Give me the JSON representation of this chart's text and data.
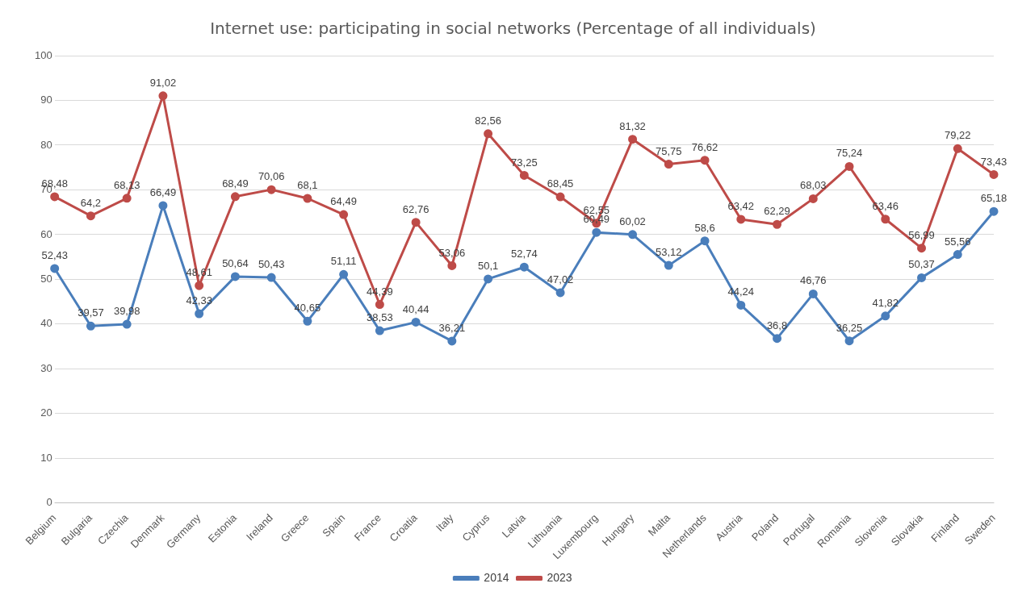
{
  "chart_data": {
    "type": "line",
    "title": "Internet use: participating in social networks (Percentage of all individuals)",
    "categories": [
      "Belgium",
      "Bulgaria",
      "Czechia",
      "Denmark",
      "Germany",
      "Estonia",
      "Ireland",
      "Greece",
      "Spain",
      "France",
      "Croatia",
      "Italy",
      "Cyprus",
      "Latvia",
      "Lithuania",
      "Luxembourg",
      "Hungary",
      "Malta",
      "Netherlands",
      "Austria",
      "Poland",
      "Portugal",
      "Romania",
      "Slovenia",
      "Slovakia",
      "Finland",
      "Sweden"
    ],
    "series": [
      {
        "name": "2014",
        "color": "#4a7ebb",
        "values": [
          52.43,
          39.57,
          39.98,
          66.49,
          42.33,
          50.64,
          50.43,
          40.65,
          51.11,
          38.53,
          40.44,
          36.21,
          50.1,
          52.74,
          47.02,
          60.49,
          60.02,
          53.12,
          58.6,
          44.24,
          36.8,
          46.76,
          36.25,
          41.82,
          50.37,
          55.56,
          65.18
        ],
        "value_labels": [
          "52,43",
          "39,57",
          "39,98",
          "66,49",
          "42,33",
          "50,64",
          "50,43",
          "40,65",
          "51,11",
          "38,53",
          "40,44",
          "36,21",
          "50,1",
          "52,74",
          "47,02",
          "60,49",
          "60,02",
          "53,12",
          "58,6",
          "44,24",
          "36,8",
          "46,76",
          "36,25",
          "41,82",
          "50,37",
          "55,56",
          "65,18"
        ]
      },
      {
        "name": "2023",
        "color": "#be4b48",
        "values": [
          68.48,
          64.2,
          68.13,
          91.02,
          48.61,
          68.49,
          70.06,
          68.1,
          64.49,
          44.39,
          62.76,
          53.06,
          82.56,
          73.25,
          68.45,
          62.55,
          81.32,
          75.75,
          76.62,
          63.42,
          62.29,
          68.03,
          75.24,
          63.46,
          56.99,
          79.22,
          73.43
        ],
        "value_labels": [
          "68,48",
          "64,2",
          "68,13",
          "91,02",
          "48,61",
          "68,49",
          "70,06",
          "68,1",
          "64,49",
          "44,39",
          "62,76",
          "53,06",
          "82,56",
          "73,25",
          "68,45",
          "62,55",
          "81,32",
          "75,75",
          "76,62",
          "63,42",
          "62,29",
          "68,03",
          "75,24",
          "63,46",
          "56,99",
          "79,22",
          "73,43"
        ]
      }
    ],
    "ylim": [
      0,
      100
    ],
    "yticks": [
      0,
      10,
      20,
      30,
      40,
      50,
      60,
      70,
      80,
      90,
      100
    ],
    "grid": "y",
    "legend": "bottom",
    "marker": "circle",
    "line_style": "solid"
  }
}
